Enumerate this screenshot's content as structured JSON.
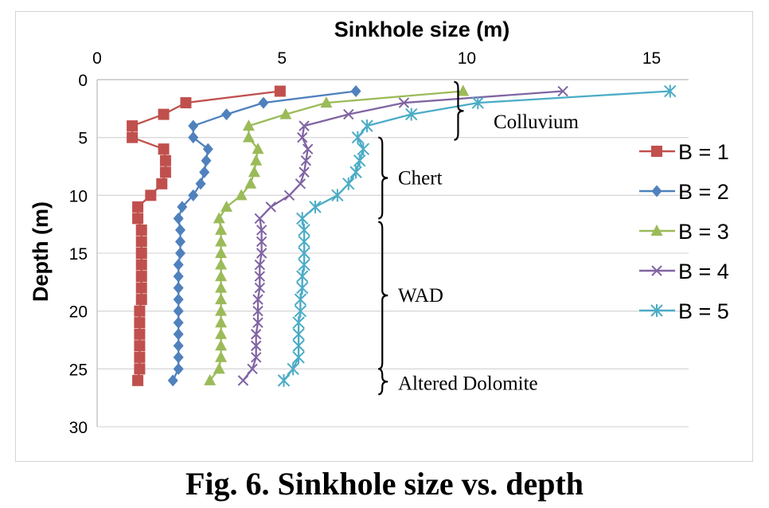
{
  "caption": "Fig. 6. Sinkhole size vs. depth",
  "chart_data": {
    "type": "line",
    "title": "Sinkhole size (m)",
    "xlabel": "Sinkhole size (m)",
    "ylabel": "Depth (m)",
    "xlim": [
      0,
      16
    ],
    "ylim": [
      0,
      30
    ],
    "x_axis_position": "top",
    "y_axis_inverted": true,
    "xticks": [
      0,
      5,
      10,
      15
    ],
    "yticks": [
      0,
      5,
      10,
      15,
      20,
      25,
      30
    ],
    "grid": "horizontal",
    "legend": "right",
    "series": [
      {
        "name": "B = 1",
        "color": "#c0504d",
        "marker": "square",
        "x": [
          4.95,
          2.4,
          1.8,
          0.95,
          0.95,
          1.8,
          1.85,
          1.85,
          1.75,
          1.45,
          1.1,
          1.1,
          1.2,
          1.2,
          1.2,
          1.2,
          1.2,
          1.2,
          1.2,
          1.15,
          1.15,
          1.15,
          1.15,
          1.15,
          1.15,
          1.1
        ],
        "y": [
          1,
          2,
          3,
          4,
          5,
          6,
          7,
          8,
          9,
          10,
          11,
          12,
          13,
          14,
          15,
          16,
          17,
          18,
          19,
          20,
          21,
          22,
          23,
          24,
          25,
          26
        ]
      },
      {
        "name": "B = 2",
        "color": "#4f81bd",
        "marker": "diamond",
        "x": [
          7.0,
          4.5,
          3.5,
          2.6,
          2.6,
          3.0,
          2.95,
          2.9,
          2.8,
          2.6,
          2.3,
          2.2,
          2.25,
          2.25,
          2.25,
          2.2,
          2.2,
          2.2,
          2.2,
          2.2,
          2.2,
          2.2,
          2.2,
          2.2,
          2.2,
          2.05
        ],
        "y": [
          1,
          2,
          3,
          4,
          5,
          6,
          7,
          8,
          9,
          10,
          11,
          12,
          13,
          14,
          15,
          16,
          17,
          18,
          19,
          20,
          21,
          22,
          23,
          24,
          25,
          26
        ]
      },
      {
        "name": "B = 3",
        "color": "#9bbb59",
        "marker": "triangle",
        "x": [
          9.9,
          6.2,
          5.1,
          4.1,
          4.1,
          4.35,
          4.3,
          4.25,
          4.15,
          3.9,
          3.5,
          3.3,
          3.35,
          3.35,
          3.35,
          3.35,
          3.35,
          3.35,
          3.35,
          3.35,
          3.35,
          3.35,
          3.35,
          3.35,
          3.3,
          3.05
        ],
        "y": [
          1,
          2,
          3,
          4,
          5,
          6,
          7,
          8,
          9,
          10,
          11,
          12,
          13,
          14,
          15,
          16,
          17,
          18,
          19,
          20,
          21,
          22,
          23,
          24,
          25,
          26
        ]
      },
      {
        "name": "B = 4",
        "color": "#8064a2",
        "marker": "x",
        "x": [
          12.6,
          8.3,
          6.8,
          5.6,
          5.55,
          5.7,
          5.65,
          5.6,
          5.5,
          5.2,
          4.7,
          4.4,
          4.45,
          4.45,
          4.45,
          4.4,
          4.4,
          4.4,
          4.35,
          4.35,
          4.35,
          4.3,
          4.3,
          4.3,
          4.2,
          3.95
        ],
        "y": [
          1,
          2,
          3,
          4,
          5,
          6,
          7,
          8,
          9,
          10,
          11,
          12,
          13,
          14,
          15,
          16,
          17,
          18,
          19,
          20,
          21,
          22,
          23,
          24,
          25,
          26
        ]
      },
      {
        "name": "B = 5",
        "color": "#4bacc6",
        "marker": "star",
        "x": [
          15.5,
          10.3,
          8.5,
          7.3,
          7.05,
          7.2,
          7.1,
          7.0,
          6.8,
          6.5,
          5.9,
          5.55,
          5.6,
          5.6,
          5.6,
          5.6,
          5.55,
          5.55,
          5.5,
          5.5,
          5.45,
          5.45,
          5.45,
          5.45,
          5.3,
          5.05
        ],
        "y": [
          1,
          2,
          3,
          4,
          5,
          6,
          7,
          8,
          9,
          10,
          11,
          12,
          13,
          14,
          15,
          16,
          17,
          18,
          19,
          20,
          21,
          22,
          23,
          24,
          25,
          26
        ]
      }
    ],
    "annotations": [
      {
        "text": "Colluvium",
        "y_from": 0.2,
        "y_to": 5.2,
        "x": 9.7,
        "side": "left-brace"
      },
      {
        "text": "Chert",
        "y_from": 5.0,
        "y_to": 12.0,
        "x": 7.65,
        "side": "right-brace"
      },
      {
        "text": "WAD",
        "y_from": 12.3,
        "y_to": 25.0,
        "x": 7.65,
        "side": "right-brace"
      },
      {
        "text": "Altered Dolomite",
        "y_from": 25.0,
        "y_to": 27.2,
        "x": 7.65,
        "side": "right-brace"
      }
    ]
  }
}
